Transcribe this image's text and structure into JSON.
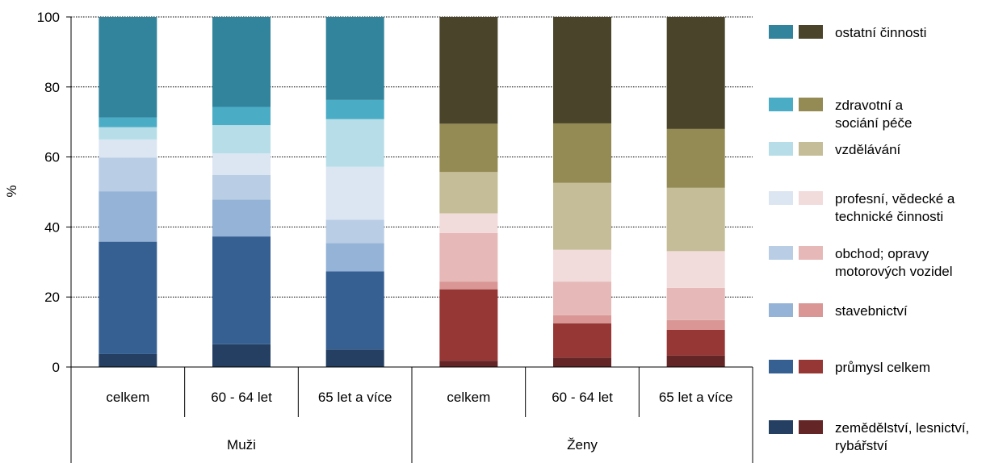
{
  "chart_data": {
    "type": "bar",
    "stacked": true,
    "ylabel": "%",
    "ylim": [
      0,
      100
    ],
    "yticks": [
      0,
      20,
      40,
      60,
      80,
      100
    ],
    "grid": true,
    "legend_position": "right",
    "groups": [
      {
        "label": "Muži",
        "categories": [
          "celkem",
          "60 - 64 let",
          "65 let a více"
        ]
      },
      {
        "label": "Ženy",
        "categories": [
          "celkem",
          "60 - 64 let",
          "65 let a více"
        ]
      }
    ],
    "series": [
      {
        "name": "zemědělství, lesnictví, rybářství",
        "values": [
          3.7,
          6.5,
          5.0,
          1.8,
          2.7,
          3.3
        ],
        "colors": {
          "Muži": "#243f62",
          "Ženy": "#632526"
        }
      },
      {
        "name": "průmysl celkem",
        "values": [
          32.1,
          30.8,
          22.3,
          20.4,
          9.8,
          7.3
        ],
        "colors": {
          "Muži": "#376092",
          "Ženy": "#963735"
        }
      },
      {
        "name": "stavebnictví",
        "values": [
          14.4,
          10.5,
          8.1,
          2.2,
          2.3,
          2.8
        ],
        "colors": {
          "Muži": "#95b3d7",
          "Ženy": "#d99694"
        }
      },
      {
        "name": "obchod; opravy motorových vozidel",
        "values": [
          9.6,
          7.1,
          6.7,
          13.9,
          9.6,
          9.2
        ],
        "colors": {
          "Muži": "#b9cde5",
          "Ženy": "#e6b9b8"
        }
      },
      {
        "name": "profesní, vědecké a technické činnosti",
        "values": [
          5.2,
          6.1,
          15.1,
          5.6,
          9.1,
          10.5
        ],
        "colors": {
          "Muži": "#dce6f2",
          "Ženy": "#f2dcdb"
        }
      },
      {
        "name": "vzdělávání",
        "values": [
          3.5,
          8.1,
          13.6,
          11.8,
          19.1,
          18.1
        ],
        "colors": {
          "Muži": "#b7dee8",
          "Ženy": "#c4bd97"
        }
      },
      {
        "name": "zdravotní a sociání péče",
        "values": [
          2.8,
          5.2,
          5.5,
          13.8,
          17.0,
          16.8
        ],
        "colors": {
          "Muži": "#4bacc6",
          "Ženy": "#948a54"
        }
      },
      {
        "name": "ostatní činnosti",
        "values": [
          28.7,
          25.7,
          23.7,
          30.5,
          30.4,
          32.0
        ],
        "colors": {
          "Muži": "#31849b",
          "Ženy": "#4a452a"
        }
      }
    ],
    "legend": [
      {
        "lines": [
          "ostatní činnosti"
        ],
        "colors": [
          "#31849b",
          "#4a452a"
        ]
      },
      {
        "lines": [
          "zdravotní a",
          "sociání péče"
        ],
        "colors": [
          "#4bacc6",
          "#948a54"
        ]
      },
      {
        "lines": [
          "vzdělávání"
        ],
        "colors": [
          "#b7dee8",
          "#c4bd97"
        ]
      },
      {
        "lines": [
          "profesní, vědecké a",
          "technické činnosti"
        ],
        "colors": [
          "#dce6f2",
          "#f2dcdb"
        ]
      },
      {
        "lines": [
          "obchod; opravy",
          "motorových vozidel"
        ],
        "colors": [
          "#b9cde5",
          "#e6b9b8"
        ]
      },
      {
        "lines": [
          "stavebnictví"
        ],
        "colors": [
          "#95b3d7",
          "#d99694"
        ]
      },
      {
        "lines": [
          "průmysl celkem"
        ],
        "colors": [
          "#376092",
          "#963735"
        ]
      },
      {
        "lines": [
          "zemědělství, lesnictví,",
          "rybářství"
        ],
        "colors": [
          "#243f62",
          "#632526"
        ]
      }
    ]
  }
}
